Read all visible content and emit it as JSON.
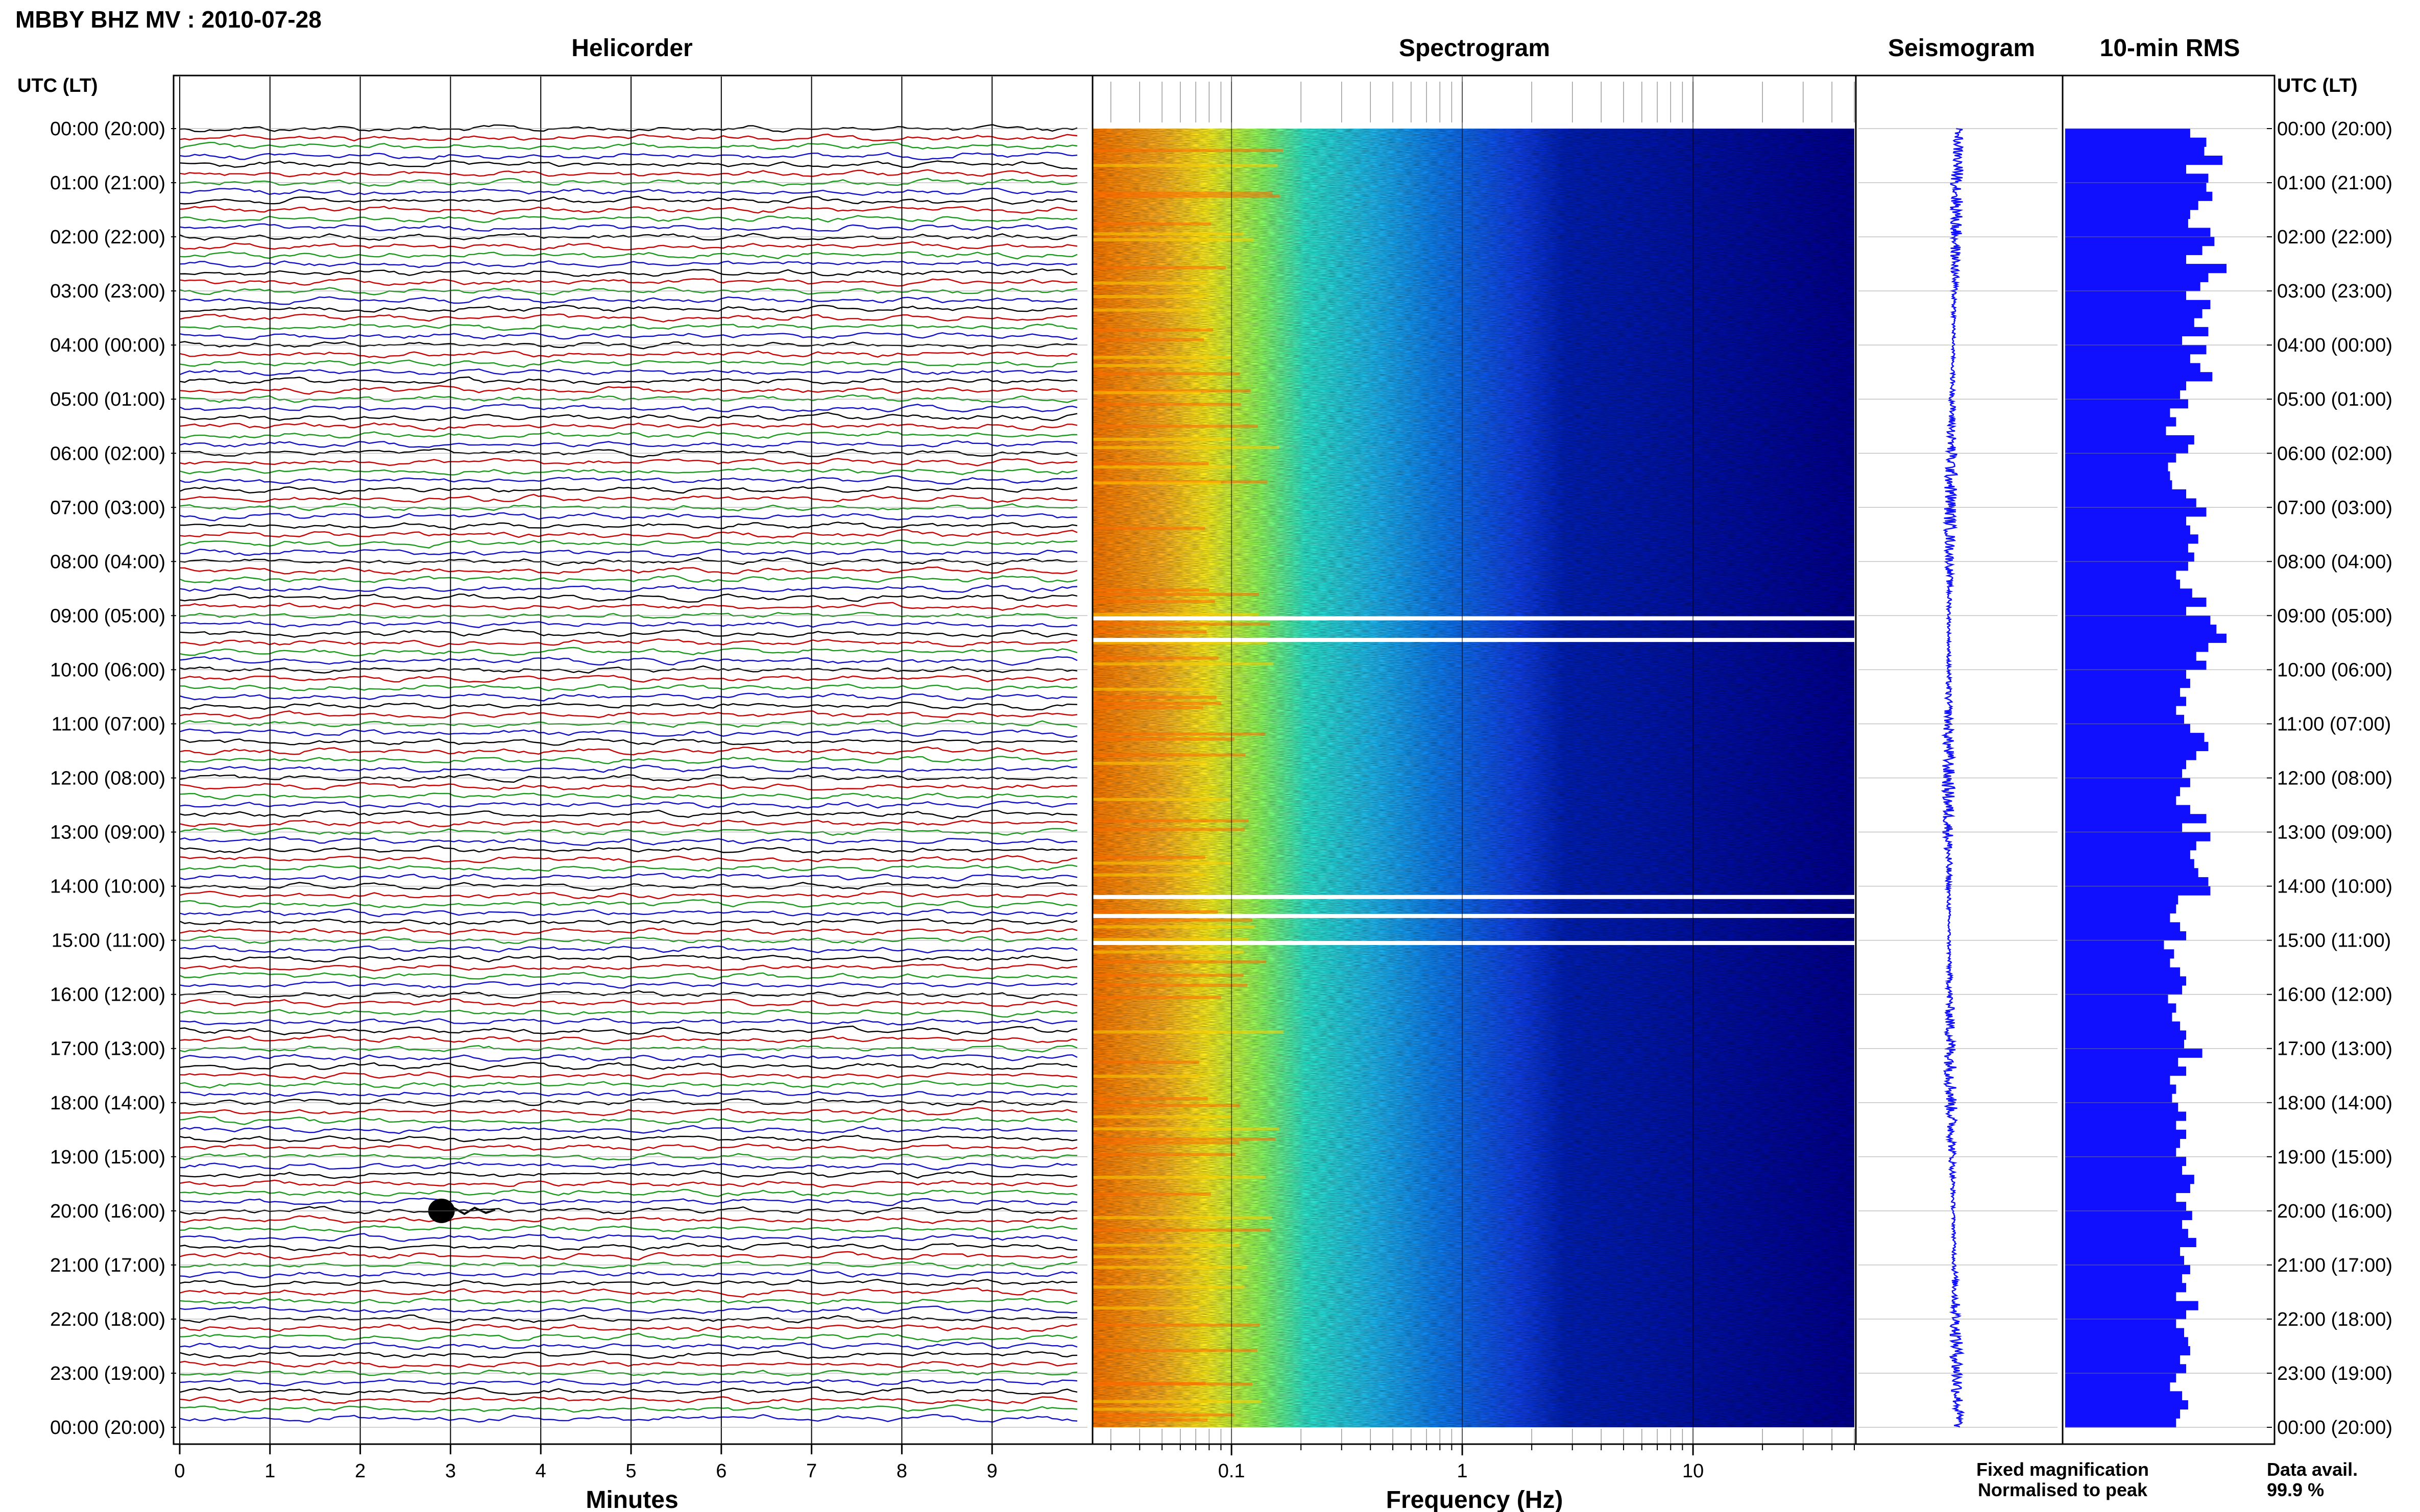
{
  "header": {
    "station_title": "MBBY BHZ MV : 2010-07-28"
  },
  "panels": {
    "helicorder": "Helicorder",
    "spectrogram": "Spectrogram",
    "seismogram": "Seismogram",
    "rms": "10-min RMS"
  },
  "time_axis": {
    "header_left": "UTC (LT)",
    "header_right": "UTC (LT)",
    "labels": [
      "00:00 (20:00)",
      "01:00 (21:00)",
      "02:00 (22:00)",
      "03:00 (23:00)",
      "04:00 (00:00)",
      "05:00 (01:00)",
      "06:00 (02:00)",
      "07:00 (03:00)",
      "08:00 (04:00)",
      "09:00 (05:00)",
      "10:00 (06:00)",
      "11:00 (07:00)",
      "12:00 (08:00)",
      "13:00 (09:00)",
      "14:00 (10:00)",
      "15:00 (11:00)",
      "16:00 (12:00)",
      "17:00 (13:00)",
      "18:00 (14:00)",
      "19:00 (15:00)",
      "20:00 (16:00)",
      "21:00 (17:00)",
      "22:00 (18:00)",
      "23:00 (19:00)",
      "00:00 (20:00)"
    ]
  },
  "legend": {
    "fixed": "Fixed magnification",
    "fixed_color": "#1010ff",
    "normalised": "Normalised to peak",
    "normalised_color": "#ff1010",
    "data_avail_label": "Data avail.",
    "data_avail_value": "99.9 %"
  },
  "chart_data": [
    {
      "type": "line",
      "panel": "helicorder",
      "xlabel": "Minutes",
      "x_ticks": [
        "0",
        "1",
        "2",
        "3",
        "4",
        "5",
        "6",
        "7",
        "8",
        "9"
      ],
      "xlim": [
        0,
        10
      ],
      "ylim_hours": [
        0,
        24
      ],
      "traces_per_hour": 6,
      "trace_colors": [
        "#000000",
        "#cc0000",
        "#1a9a1a",
        "#1010cc"
      ],
      "events": [
        {
          "time": "20:00",
          "minute": 2.9
        }
      ]
    },
    {
      "type": "heatmap",
      "panel": "spectrogram",
      "xlabel": "Frequency (Hz)",
      "x_scale": "log",
      "xlim": [
        0.025,
        50
      ],
      "x_ticks": [
        "0.1",
        "1",
        "10"
      ],
      "ylim_hours": [
        0,
        24
      ],
      "data_gaps_hours": [
        9.05,
        9.45,
        14.2,
        14.55,
        15.05
      ]
    },
    {
      "type": "line",
      "panel": "seismogram",
      "ylim_hours": [
        0,
        24
      ]
    },
    {
      "type": "bar",
      "panel": "rms",
      "orientation": "horizontal",
      "bar_color": "#1010ff",
      "values": [
        0.62,
        0.7,
        0.69,
        0.78,
        0.6,
        0.71,
        0.7,
        0.73,
        0.66,
        0.62,
        0.61,
        0.72,
        0.74,
        0.68,
        0.6,
        0.8,
        0.71,
        0.67,
        0.6,
        0.72,
        0.68,
        0.64,
        0.71,
        0.58,
        0.7,
        0.62,
        0.67,
        0.73,
        0.6,
        0.57,
        0.61,
        0.52,
        0.55,
        0.5,
        0.64,
        0.61,
        0.55,
        0.51,
        0.52,
        0.53,
        0.6,
        0.65,
        0.7,
        0.6,
        0.62,
        0.66,
        0.61,
        0.64,
        0.61,
        0.55,
        0.57,
        0.63,
        0.7,
        0.6,
        0.72,
        0.75,
        0.8,
        0.71,
        0.65,
        0.7,
        0.6,
        0.62,
        0.57,
        0.6,
        0.55,
        0.59,
        0.62,
        0.69,
        0.71,
        0.65,
        0.6,
        0.58,
        0.62,
        0.57,
        0.55,
        0.62,
        0.7,
        0.58,
        0.72,
        0.65,
        0.62,
        0.64,
        0.66,
        0.71,
        0.72,
        0.56,
        0.55,
        0.52,
        0.57,
        0.6,
        0.49,
        0.54,
        0.52,
        0.57,
        0.6,
        0.58,
        0.51,
        0.55,
        0.53,
        0.57,
        0.6,
        0.59,
        0.68,
        0.56,
        0.6,
        0.52,
        0.55,
        0.53,
        0.56,
        0.6,
        0.55,
        0.6,
        0.57,
        0.55,
        0.6,
        0.58,
        0.64,
        0.62,
        0.55,
        0.6,
        0.63,
        0.58,
        0.61,
        0.65,
        0.57,
        0.59,
        0.62,
        0.58,
        0.6,
        0.55,
        0.66,
        0.6,
        0.55,
        0.59,
        0.61,
        0.62,
        0.57,
        0.6,
        0.55,
        0.52,
        0.58,
        0.61,
        0.57,
        0.55
      ]
    }
  ]
}
